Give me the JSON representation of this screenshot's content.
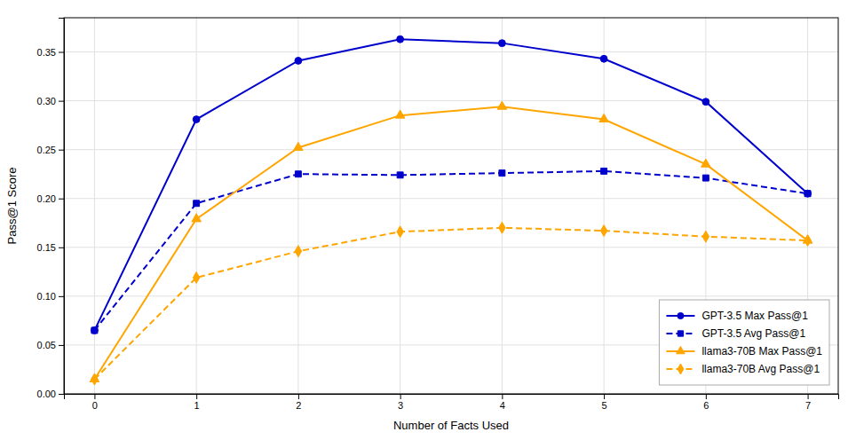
{
  "chart_data": {
    "type": "line",
    "xlabel": "Number of Facts Used",
    "ylabel": "Pass@1 Score",
    "x": [
      0,
      1,
      2,
      3,
      4,
      5,
      6,
      7
    ],
    "series": [
      {
        "name": "GPT-3.5 Max Pass@1",
        "color": "#0000cc",
        "marker": "circle",
        "line_style": "solid",
        "values": [
          0.065,
          0.281,
          0.341,
          0.363,
          0.359,
          0.343,
          0.299,
          0.205
        ]
      },
      {
        "name": "GPT-3.5 Avg Pass@1",
        "color": "#0000cc",
        "marker": "square",
        "line_style": "dashed",
        "values": [
          0.065,
          0.195,
          0.225,
          0.224,
          0.226,
          0.228,
          0.221,
          0.205
        ]
      },
      {
        "name": "llama3-70B Max Pass@1",
        "color": "#ffa500",
        "marker": "triangle",
        "line_style": "solid",
        "values": [
          0.015,
          0.179,
          0.252,
          0.285,
          0.294,
          0.281,
          0.235,
          0.157
        ]
      },
      {
        "name": "llama3-70B Avg Pass@1",
        "color": "#ffa500",
        "marker": "diamond",
        "line_style": "dashed",
        "values": [
          0.015,
          0.119,
          0.146,
          0.166,
          0.17,
          0.167,
          0.161,
          0.157
        ]
      }
    ],
    "xlim": [
      -0.3,
      7.3
    ],
    "xticks": [
      0,
      1,
      2,
      3,
      4,
      5,
      6,
      7
    ],
    "ylim": [
      0.0,
      0.385
    ],
    "yticks": [
      {
        "value": 0,
        "label": "0.00"
      },
      0.05,
      {
        "value": 0.1,
        "label": "0.10"
      },
      0.15,
      {
        "value": 0.2,
        "label": "0.20"
      },
      0.25,
      {
        "value": 0.3,
        "label": "0.30"
      },
      0.35
    ],
    "grid": true,
    "legend": "lower right"
  }
}
